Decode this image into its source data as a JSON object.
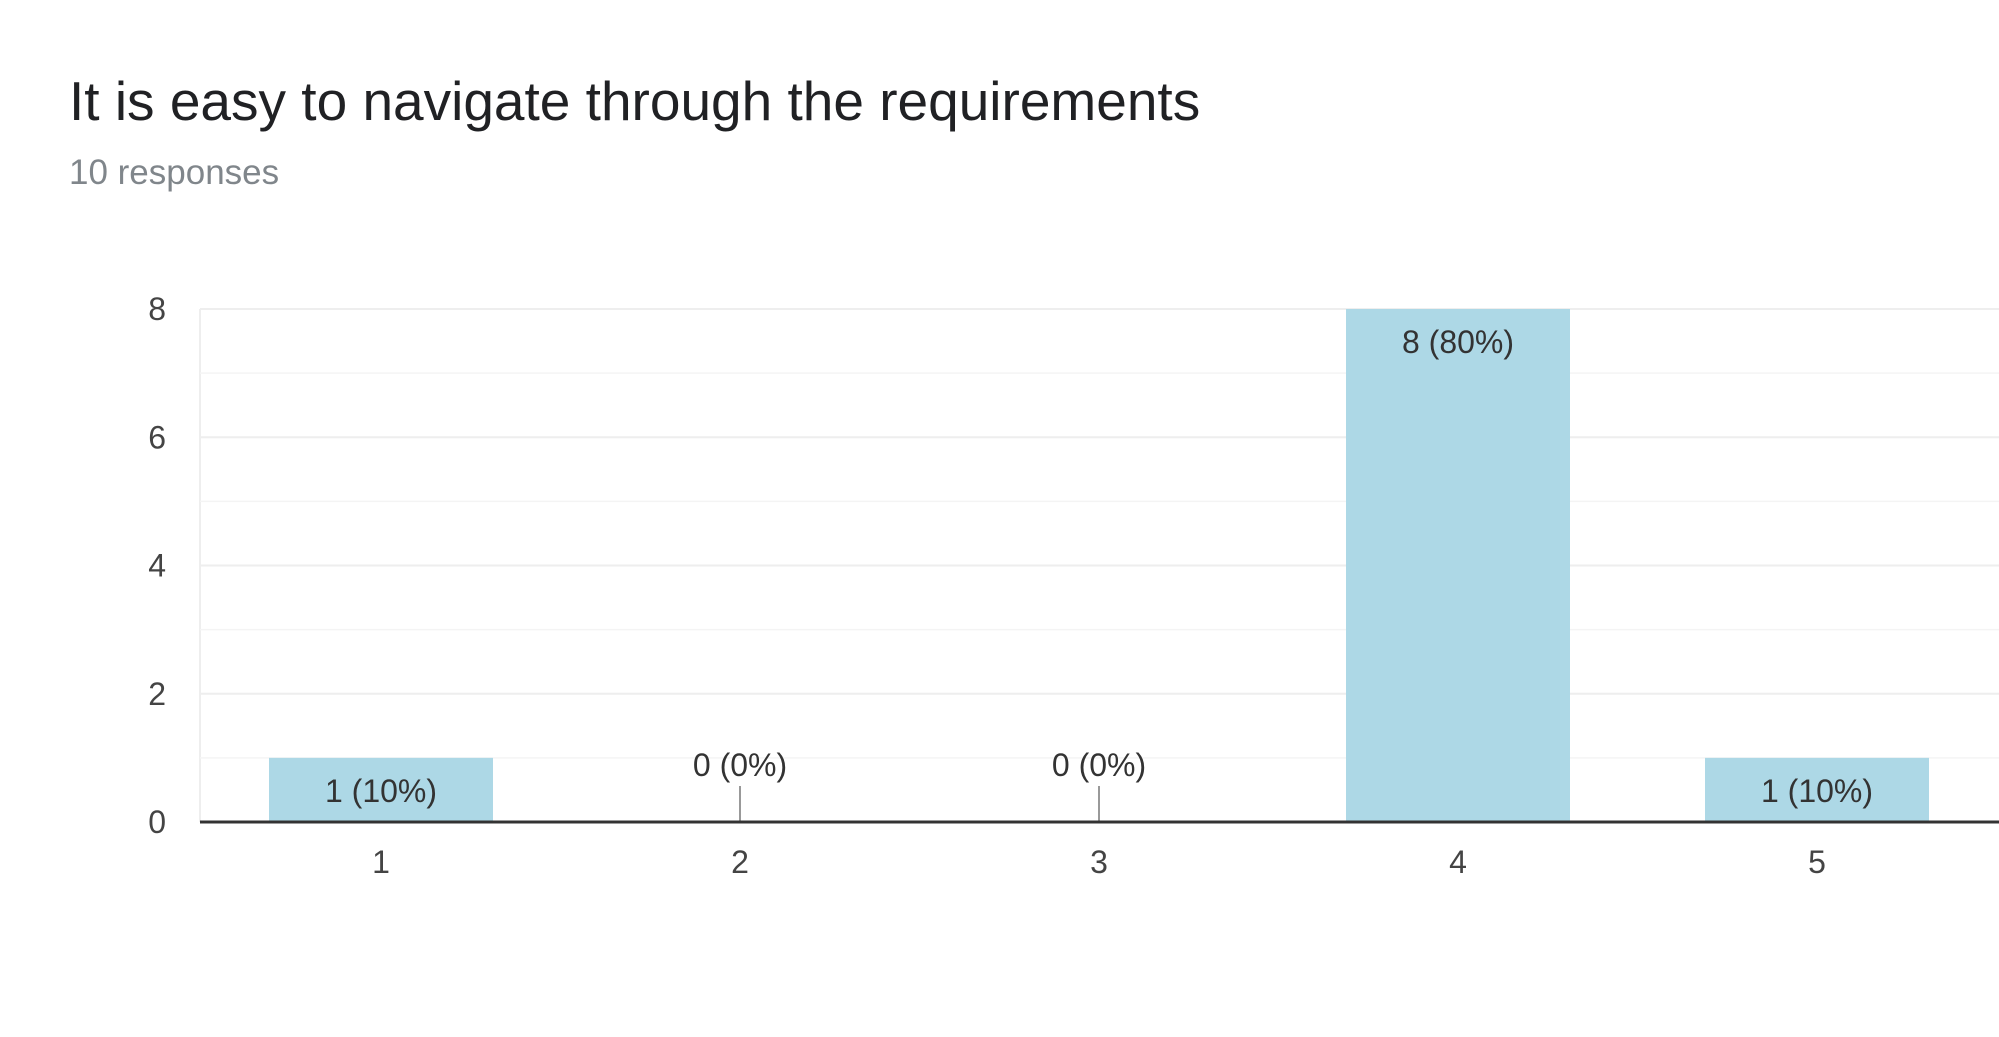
{
  "header": {
    "title": "It is easy to navigate through the requirements",
    "subtitle": "10 responses"
  },
  "colors": {
    "bar": "#add8e6",
    "grid": "#eeeeee",
    "minor_grid": "#f4f4f4",
    "axis": "#333333",
    "zero_stub": "#999999"
  },
  "chart_data": {
    "type": "bar",
    "title": "It is easy to navigate through the requirements",
    "subtitle": "10 responses",
    "categories": [
      "1",
      "2",
      "3",
      "4",
      "5"
    ],
    "values": [
      1,
      0,
      0,
      8,
      1
    ],
    "data_labels": [
      "1 (10%)",
      "0 (0%)",
      "0 (0%)",
      "8 (80%)",
      "1 (10%)"
    ],
    "xlabel": "",
    "ylabel": "",
    "ylim": [
      0,
      8
    ],
    "yticks": [
      0,
      2,
      4,
      6,
      8
    ],
    "grid": true,
    "legend": "none"
  }
}
